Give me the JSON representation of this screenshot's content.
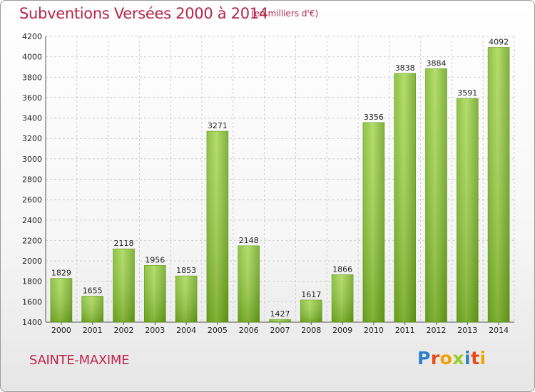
{
  "title": "Subventions Versées 2000 à 2014",
  "subtitle": "(en milliers d'€)",
  "city": "SAINTE-MAXIME",
  "logo": {
    "letters": [
      "P",
      "r",
      "o",
      "x",
      "i",
      "t",
      "i"
    ]
  },
  "colors": {
    "title": "#b4254b",
    "bar_light": "#9fd04a",
    "bar_dark": "#5f9a12",
    "grid": "#cfcfcf"
  },
  "chart_data": {
    "type": "bar",
    "title": "Subventions Versées 2000 à 2014",
    "categories": [
      "2000",
      "2001",
      "2002",
      "2003",
      "2004",
      "2005",
      "2006",
      "2007",
      "2008",
      "2009",
      "2010",
      "2011",
      "2012",
      "2013",
      "2014"
    ],
    "values": [
      1829,
      1655,
      2118,
      1956,
      1853,
      3271,
      2148,
      1427,
      1617,
      1866,
      3356,
      3838,
      3884,
      3591,
      4092
    ],
    "ylim": [
      1400,
      4200
    ],
    "yticks": [
      1400,
      1600,
      1800,
      2000,
      2200,
      2400,
      2600,
      2800,
      3000,
      3200,
      3400,
      3600,
      3800,
      4000,
      4200
    ],
    "grid": true
  }
}
